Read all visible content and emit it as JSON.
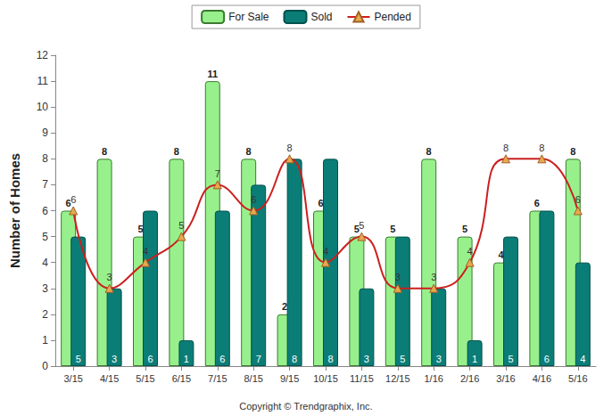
{
  "chart_data": {
    "type": "bar",
    "ylabel": "Number of Homes",
    "annotations": [
      "Copyright © Trendgraphix, Inc."
    ],
    "categories": [
      "3/15",
      "4/15",
      "5/15",
      "6/15",
      "7/15",
      "8/15",
      "9/15",
      "10/15",
      "11/15",
      "12/15",
      "1/16",
      "2/16",
      "3/16",
      "4/16",
      "5/16"
    ],
    "series": [
      {
        "name": "For Sale",
        "type": "bar",
        "color": "#98f08c",
        "values": [
          6,
          8,
          5,
          8,
          11,
          8,
          2,
          6,
          5,
          5,
          8,
          5,
          4,
          6,
          8
        ]
      },
      {
        "name": "Sold",
        "type": "bar",
        "color": "#0b7d77",
        "values": [
          5,
          3,
          6,
          1,
          6,
          7,
          8,
          8,
          3,
          5,
          3,
          1,
          5,
          6,
          4
        ]
      },
      {
        "name": "Pended",
        "type": "line",
        "color": "#cc1f1f",
        "marker": "triangle",
        "values": [
          6,
          3,
          4,
          5,
          7,
          6,
          8,
          4,
          5,
          3,
          3,
          4,
          8,
          8,
          6
        ]
      }
    ],
    "ylim": [
      0,
      12
    ],
    "yticks": [
      0,
      1,
      2,
      3,
      4,
      5,
      6,
      7,
      8,
      9,
      10,
      11,
      12
    ],
    "grid": false,
    "legend": "top",
    "data_labels": true
  }
}
